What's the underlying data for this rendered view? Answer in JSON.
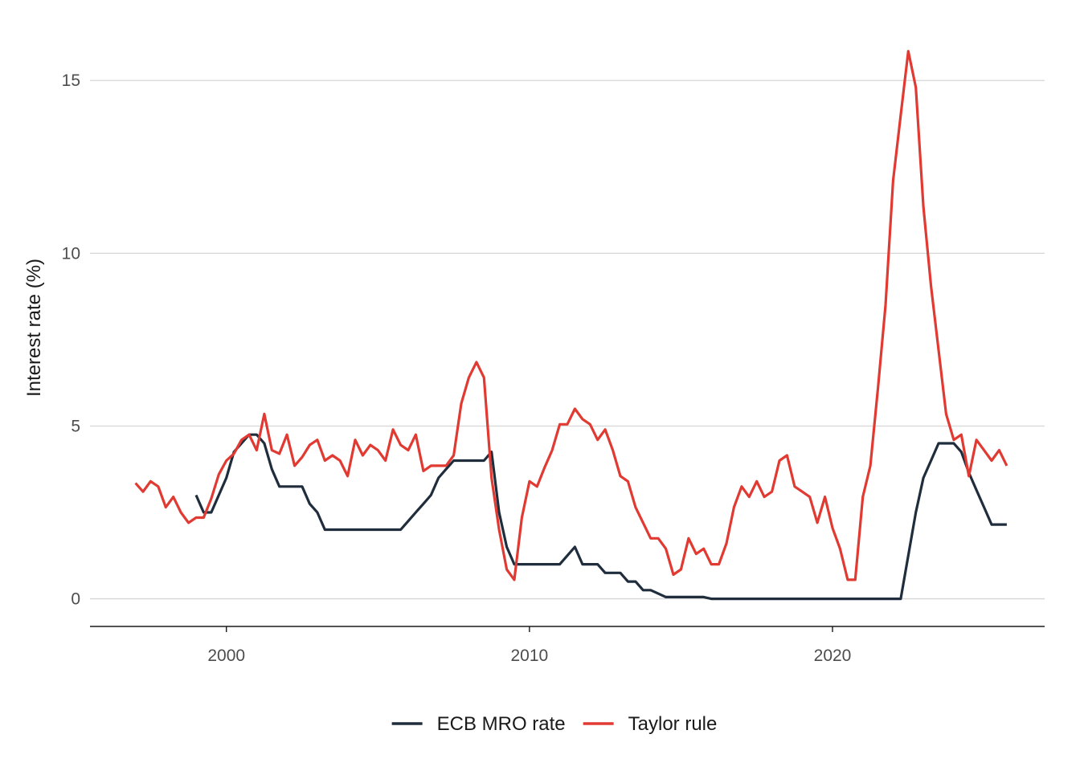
{
  "chart_data": {
    "type": "line",
    "title": "",
    "xlabel": "",
    "ylabel": "Interest rate (%)",
    "xlim": [
      1995.5,
      2027.0
    ],
    "ylim": [
      -0.8,
      16.4
    ],
    "x_ticks": [
      2000,
      2010,
      2020
    ],
    "x_tick_labels": [
      "2000",
      "2010",
      "2020"
    ],
    "y_ticks": [
      0,
      5,
      10,
      15
    ],
    "y_tick_labels": [
      "0",
      "5",
      "10",
      "15"
    ],
    "grid": "horizontal major gridlines",
    "legend_position": "bottom",
    "series": [
      {
        "name": "ECB MRO rate",
        "color": "#1f2d3d",
        "x": [
          1999.0,
          1999.25,
          1999.5,
          1999.75,
          2000.0,
          2000.25,
          2000.5,
          2000.75,
          2001.0,
          2001.25,
          2001.5,
          2001.75,
          2002.0,
          2002.25,
          2002.5,
          2002.75,
          2003.0,
          2003.25,
          2003.5,
          2003.75,
          2004.0,
          2004.5,
          2005.0,
          2005.5,
          2005.75,
          2006.0,
          2006.25,
          2006.5,
          2006.75,
          2007.0,
          2007.25,
          2007.5,
          2007.75,
          2008.0,
          2008.25,
          2008.5,
          2008.75,
          2009.0,
          2009.25,
          2009.5,
          2009.75,
          2010.0,
          2010.5,
          2011.0,
          2011.25,
          2011.5,
          2011.75,
          2012.0,
          2012.25,
          2012.5,
          2012.75,
          2013.0,
          2013.25,
          2013.5,
          2013.75,
          2014.0,
          2014.25,
          2014.5,
          2014.75,
          2015.0,
          2015.5,
          2015.75,
          2016.0,
          2016.25,
          2017.0,
          2018.0,
          2019.0,
          2020.0,
          2021.0,
          2022.0,
          2022.25,
          2022.5,
          2022.75,
          2023.0,
          2023.25,
          2023.5,
          2023.75,
          2024.0,
          2024.25,
          2024.5,
          2024.75,
          2025.0,
          2025.25,
          2025.5,
          2025.75
        ],
        "values": [
          3.0,
          2.5,
          2.5,
          3.0,
          3.5,
          4.25,
          4.5,
          4.75,
          4.75,
          4.5,
          3.75,
          3.25,
          3.25,
          3.25,
          3.25,
          2.75,
          2.5,
          2.0,
          2.0,
          2.0,
          2.0,
          2.0,
          2.0,
          2.0,
          2.0,
          2.25,
          2.5,
          2.75,
          3.0,
          3.5,
          3.75,
          4.0,
          4.0,
          4.0,
          4.0,
          4.0,
          4.25,
          2.5,
          1.5,
          1.0,
          1.0,
          1.0,
          1.0,
          1.0,
          1.25,
          1.5,
          1.0,
          1.0,
          1.0,
          0.75,
          0.75,
          0.75,
          0.5,
          0.5,
          0.25,
          0.25,
          0.15,
          0.05,
          0.05,
          0.05,
          0.05,
          0.05,
          0.0,
          0.0,
          0.0,
          0.0,
          0.0,
          0.0,
          0.0,
          0.0,
          0.0,
          1.25,
          2.5,
          3.5,
          4.0,
          4.5,
          4.5,
          4.5,
          4.25,
          3.65,
          3.15,
          2.65,
          2.15,
          2.15,
          2.15
        ]
      },
      {
        "name": "Taylor rule",
        "color": "#e03a32",
        "x": [
          1997.0,
          1997.25,
          1997.5,
          1997.75,
          1998.0,
          1998.25,
          1998.5,
          1998.75,
          1999.0,
          1999.25,
          1999.5,
          1999.75,
          2000.0,
          2000.25,
          2000.5,
          2000.75,
          2001.0,
          2001.25,
          2001.5,
          2001.75,
          2002.0,
          2002.25,
          2002.5,
          2002.75,
          2003.0,
          2003.25,
          2003.5,
          2003.75,
          2004.0,
          2004.25,
          2004.5,
          2004.75,
          2005.0,
          2005.25,
          2005.5,
          2005.75,
          2006.0,
          2006.25,
          2006.5,
          2006.75,
          2007.0,
          2007.25,
          2007.5,
          2007.75,
          2008.0,
          2008.25,
          2008.5,
          2008.75,
          2009.0,
          2009.25,
          2009.5,
          2009.75,
          2010.0,
          2010.25,
          2010.5,
          2010.75,
          2011.0,
          2011.25,
          2011.5,
          2011.75,
          2012.0,
          2012.25,
          2012.5,
          2012.75,
          2013.0,
          2013.25,
          2013.5,
          2013.75,
          2014.0,
          2014.25,
          2014.5,
          2014.75,
          2015.0,
          2015.25,
          2015.5,
          2015.75,
          2016.0,
          2016.25,
          2016.5,
          2016.75,
          2017.0,
          2017.25,
          2017.5,
          2017.75,
          2018.0,
          2018.25,
          2018.5,
          2018.75,
          2019.0,
          2019.25,
          2019.5,
          2019.75,
          2020.0,
          2020.25,
          2020.5,
          2020.75,
          2021.0,
          2021.25,
          2021.5,
          2021.75,
          2022.0,
          2022.25,
          2022.5,
          2022.75,
          2023.0,
          2023.25,
          2023.5,
          2023.75,
          2024.0,
          2024.25,
          2024.5,
          2024.75,
          2025.0,
          2025.25,
          2025.5,
          2025.75
        ],
        "values": [
          3.35,
          3.1,
          3.4,
          3.25,
          2.65,
          2.95,
          2.5,
          2.2,
          2.35,
          2.35,
          2.9,
          3.6,
          4.0,
          4.2,
          4.6,
          4.75,
          4.3,
          5.35,
          4.3,
          4.2,
          4.75,
          3.85,
          4.1,
          4.45,
          4.6,
          4.0,
          4.15,
          4.0,
          3.55,
          4.6,
          4.15,
          4.45,
          4.3,
          4.0,
          4.9,
          4.45,
          4.3,
          4.75,
          3.7,
          3.85,
          3.85,
          3.85,
          4.15,
          5.65,
          6.4,
          6.85,
          6.4,
          3.5,
          2.0,
          0.85,
          0.55,
          2.35,
          3.4,
          3.25,
          3.8,
          4.3,
          5.05,
          5.05,
          5.5,
          5.2,
          5.05,
          4.6,
          4.9,
          4.3,
          3.55,
          3.4,
          2.65,
          2.2,
          1.75,
          1.75,
          1.45,
          0.7,
          0.85,
          1.75,
          1.3,
          1.45,
          1.0,
          1.0,
          1.6,
          2.65,
          3.25,
          2.95,
          3.4,
          2.95,
          3.1,
          4.0,
          4.15,
          3.25,
          3.1,
          2.95,
          2.2,
          2.95,
          2.05,
          1.45,
          0.55,
          0.55,
          2.95,
          3.85,
          6.1,
          8.5,
          12.1,
          14.0,
          15.85,
          14.8,
          11.35,
          9.05,
          7.2,
          5.35,
          4.6,
          4.75,
          3.55,
          4.6,
          4.3,
          4.0,
          4.3,
          3.85
        ]
      }
    ]
  }
}
